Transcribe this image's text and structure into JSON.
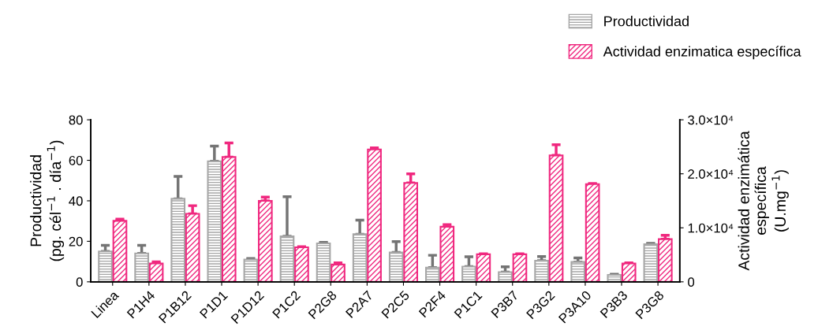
{
  "chart_data": {
    "type": "bar",
    "categories": [
      "Linea",
      "P1H4",
      "P1B12",
      "P1D1",
      "P1D12",
      "P1C2",
      "P2G8",
      "P2A7",
      "P2C5",
      "P2F4",
      "P1C1",
      "P3B7",
      "P3G2",
      "P3A10",
      "P3B3",
      "P3G8"
    ],
    "ylabel": "Productividad\n(pg. cél$^{−1}$ . día$^{−1}$)",
    "y2label": "Actividad enzimática\nespecífica\n(U.mg$^{−1}$)",
    "ylim": [
      0,
      80
    ],
    "yticks": [
      0,
      20,
      40,
      60,
      80
    ],
    "y2lim": [
      0,
      30000
    ],
    "y2ticks": [
      {
        "value": 0,
        "label": "0"
      },
      {
        "value": 10000,
        "label": "1.0×10⁴"
      },
      {
        "value": 20000,
        "label": "2.0×10⁴"
      },
      {
        "value": 30000,
        "label": "3.0×10⁴"
      }
    ],
    "legend": "top right",
    "grid": false,
    "series": [
      {
        "name": "Productividad",
        "color": "#a6a6a6",
        "values": [
          15,
          14,
          41,
          59.5,
          11,
          22.5,
          19,
          23.5,
          14.5,
          7,
          7.5,
          4.8,
          10.4,
          9.8,
          3.4,
          18.6
        ],
        "errors": [
          [
            15,
            18
          ],
          [
            14,
            18
          ],
          [
            41,
            52
          ],
          [
            59.5,
            67
          ],
          [
            11,
            11.5
          ],
          [
            22.5,
            42
          ],
          [
            19,
            19.5
          ],
          [
            23.5,
            30.5
          ],
          [
            14.5,
            19.9
          ],
          [
            7,
            13.1
          ],
          [
            7.5,
            12.4
          ],
          [
            4.8,
            7.4
          ],
          [
            10.4,
            12.5
          ],
          [
            9.8,
            11.8
          ],
          [
            3.4,
            3.7
          ],
          [
            18.6,
            19
          ]
        ]
      },
      {
        "name": "Actividad enzimatica específica",
        "color": "#f0287f",
        "axis": "y2",
        "values": [
          11300,
          3400,
          12600,
          23100,
          15000,
          6400,
          3200,
          24500,
          18300,
          10200,
          5100,
          5100,
          23400,
          18100,
          3400,
          7900
        ],
        "errors": [
          [
            11300,
            11600
          ],
          [
            3400,
            3700
          ],
          [
            12600,
            14100
          ],
          [
            23100,
            25700
          ],
          [
            15000,
            15700
          ],
          [
            6400,
            6500
          ],
          [
            3200,
            3500
          ],
          [
            24500,
            24800
          ],
          [
            18300,
            20000
          ],
          [
            10200,
            10600
          ],
          [
            5100,
            5200
          ],
          [
            5100,
            5200
          ],
          [
            23400,
            25400
          ],
          [
            18100,
            18200
          ],
          [
            3400,
            3500
          ],
          [
            7900,
            8600
          ]
        ]
      }
    ]
  }
}
